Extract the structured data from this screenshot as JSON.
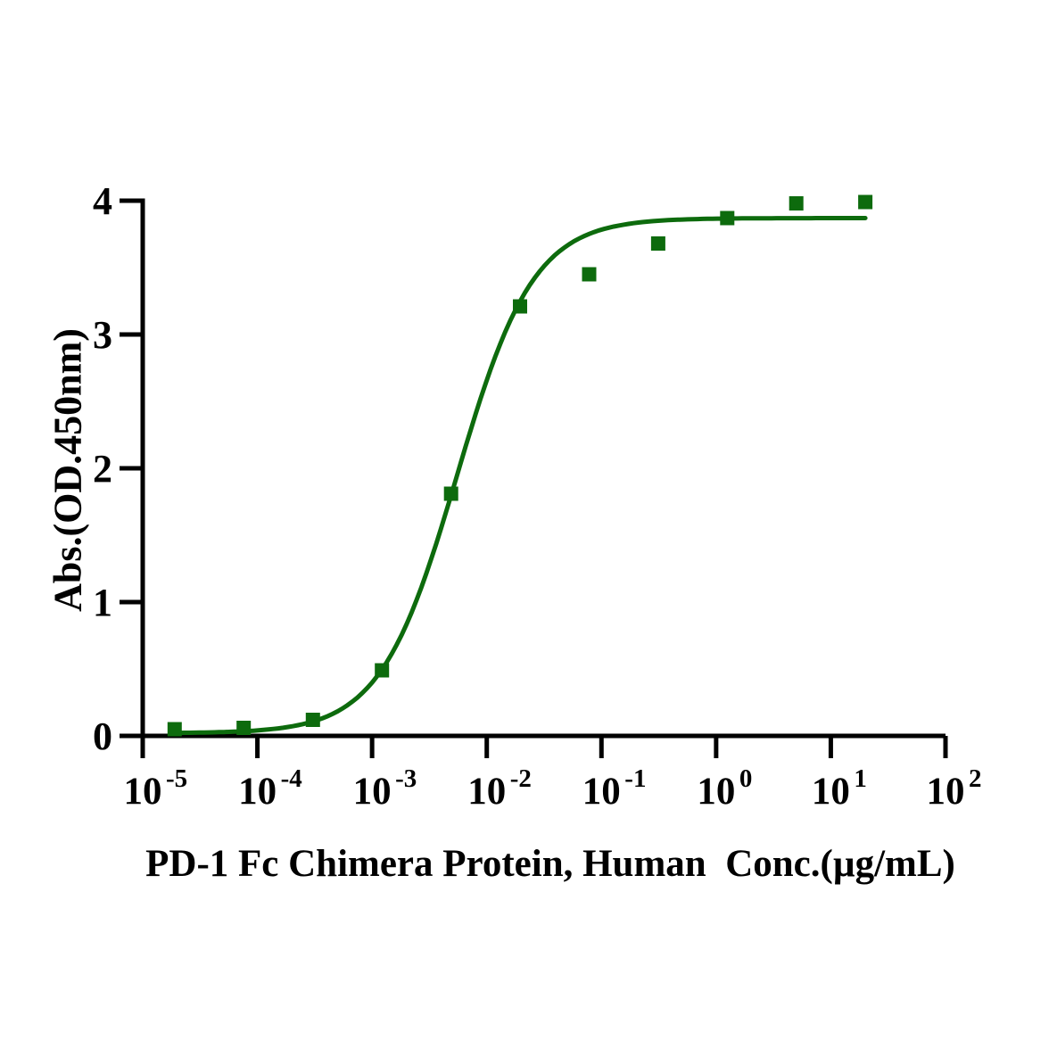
{
  "page": {
    "background_color": "#ffffff",
    "description": "ELISA binding activity dose-response curve"
  },
  "chart_data": {
    "type": "scatter",
    "subtype": "dose-response-log-x",
    "title": "",
    "xlabel": "PD-1 Fc Chimera Protein, Human  Conc.(µg/mL)",
    "ylabel": "Abs.(OD.450nm)",
    "x_scale": "log10",
    "xlim_log10": [
      -5,
      2
    ],
    "ylim": [
      0,
      4
    ],
    "x_tick_exponents": [
      -5,
      -4,
      -3,
      -2,
      -1,
      0,
      1,
      2
    ],
    "x_tick_base": "10",
    "y_ticks": [
      "0",
      "1",
      "2",
      "3",
      "4"
    ],
    "grid": false,
    "legend_position": "none",
    "series_color": "#0d6b0d",
    "axis_color": "#000000",
    "marker_shape": "square",
    "points": [
      {
        "x": 1.9e-05,
        "y": 0.05
      },
      {
        "x": 7.6e-05,
        "y": 0.06
      },
      {
        "x": 0.000305,
        "y": 0.12
      },
      {
        "x": 0.00122,
        "y": 0.49
      },
      {
        "x": 0.00488,
        "y": 1.81
      },
      {
        "x": 0.0195,
        "y": 3.21
      },
      {
        "x": 0.0781,
        "y": 3.45
      },
      {
        "x": 0.3125,
        "y": 3.68
      },
      {
        "x": 1.25,
        "y": 3.87
      },
      {
        "x": 5,
        "y": 3.98
      },
      {
        "x": 20,
        "y": 3.99
      }
    ],
    "fit_curve_4pl": {
      "bottom": 0.02,
      "top": 3.87,
      "logEC50": -2.26,
      "hill": 1.3,
      "x_range": [
        1.9e-05,
        20
      ]
    }
  }
}
